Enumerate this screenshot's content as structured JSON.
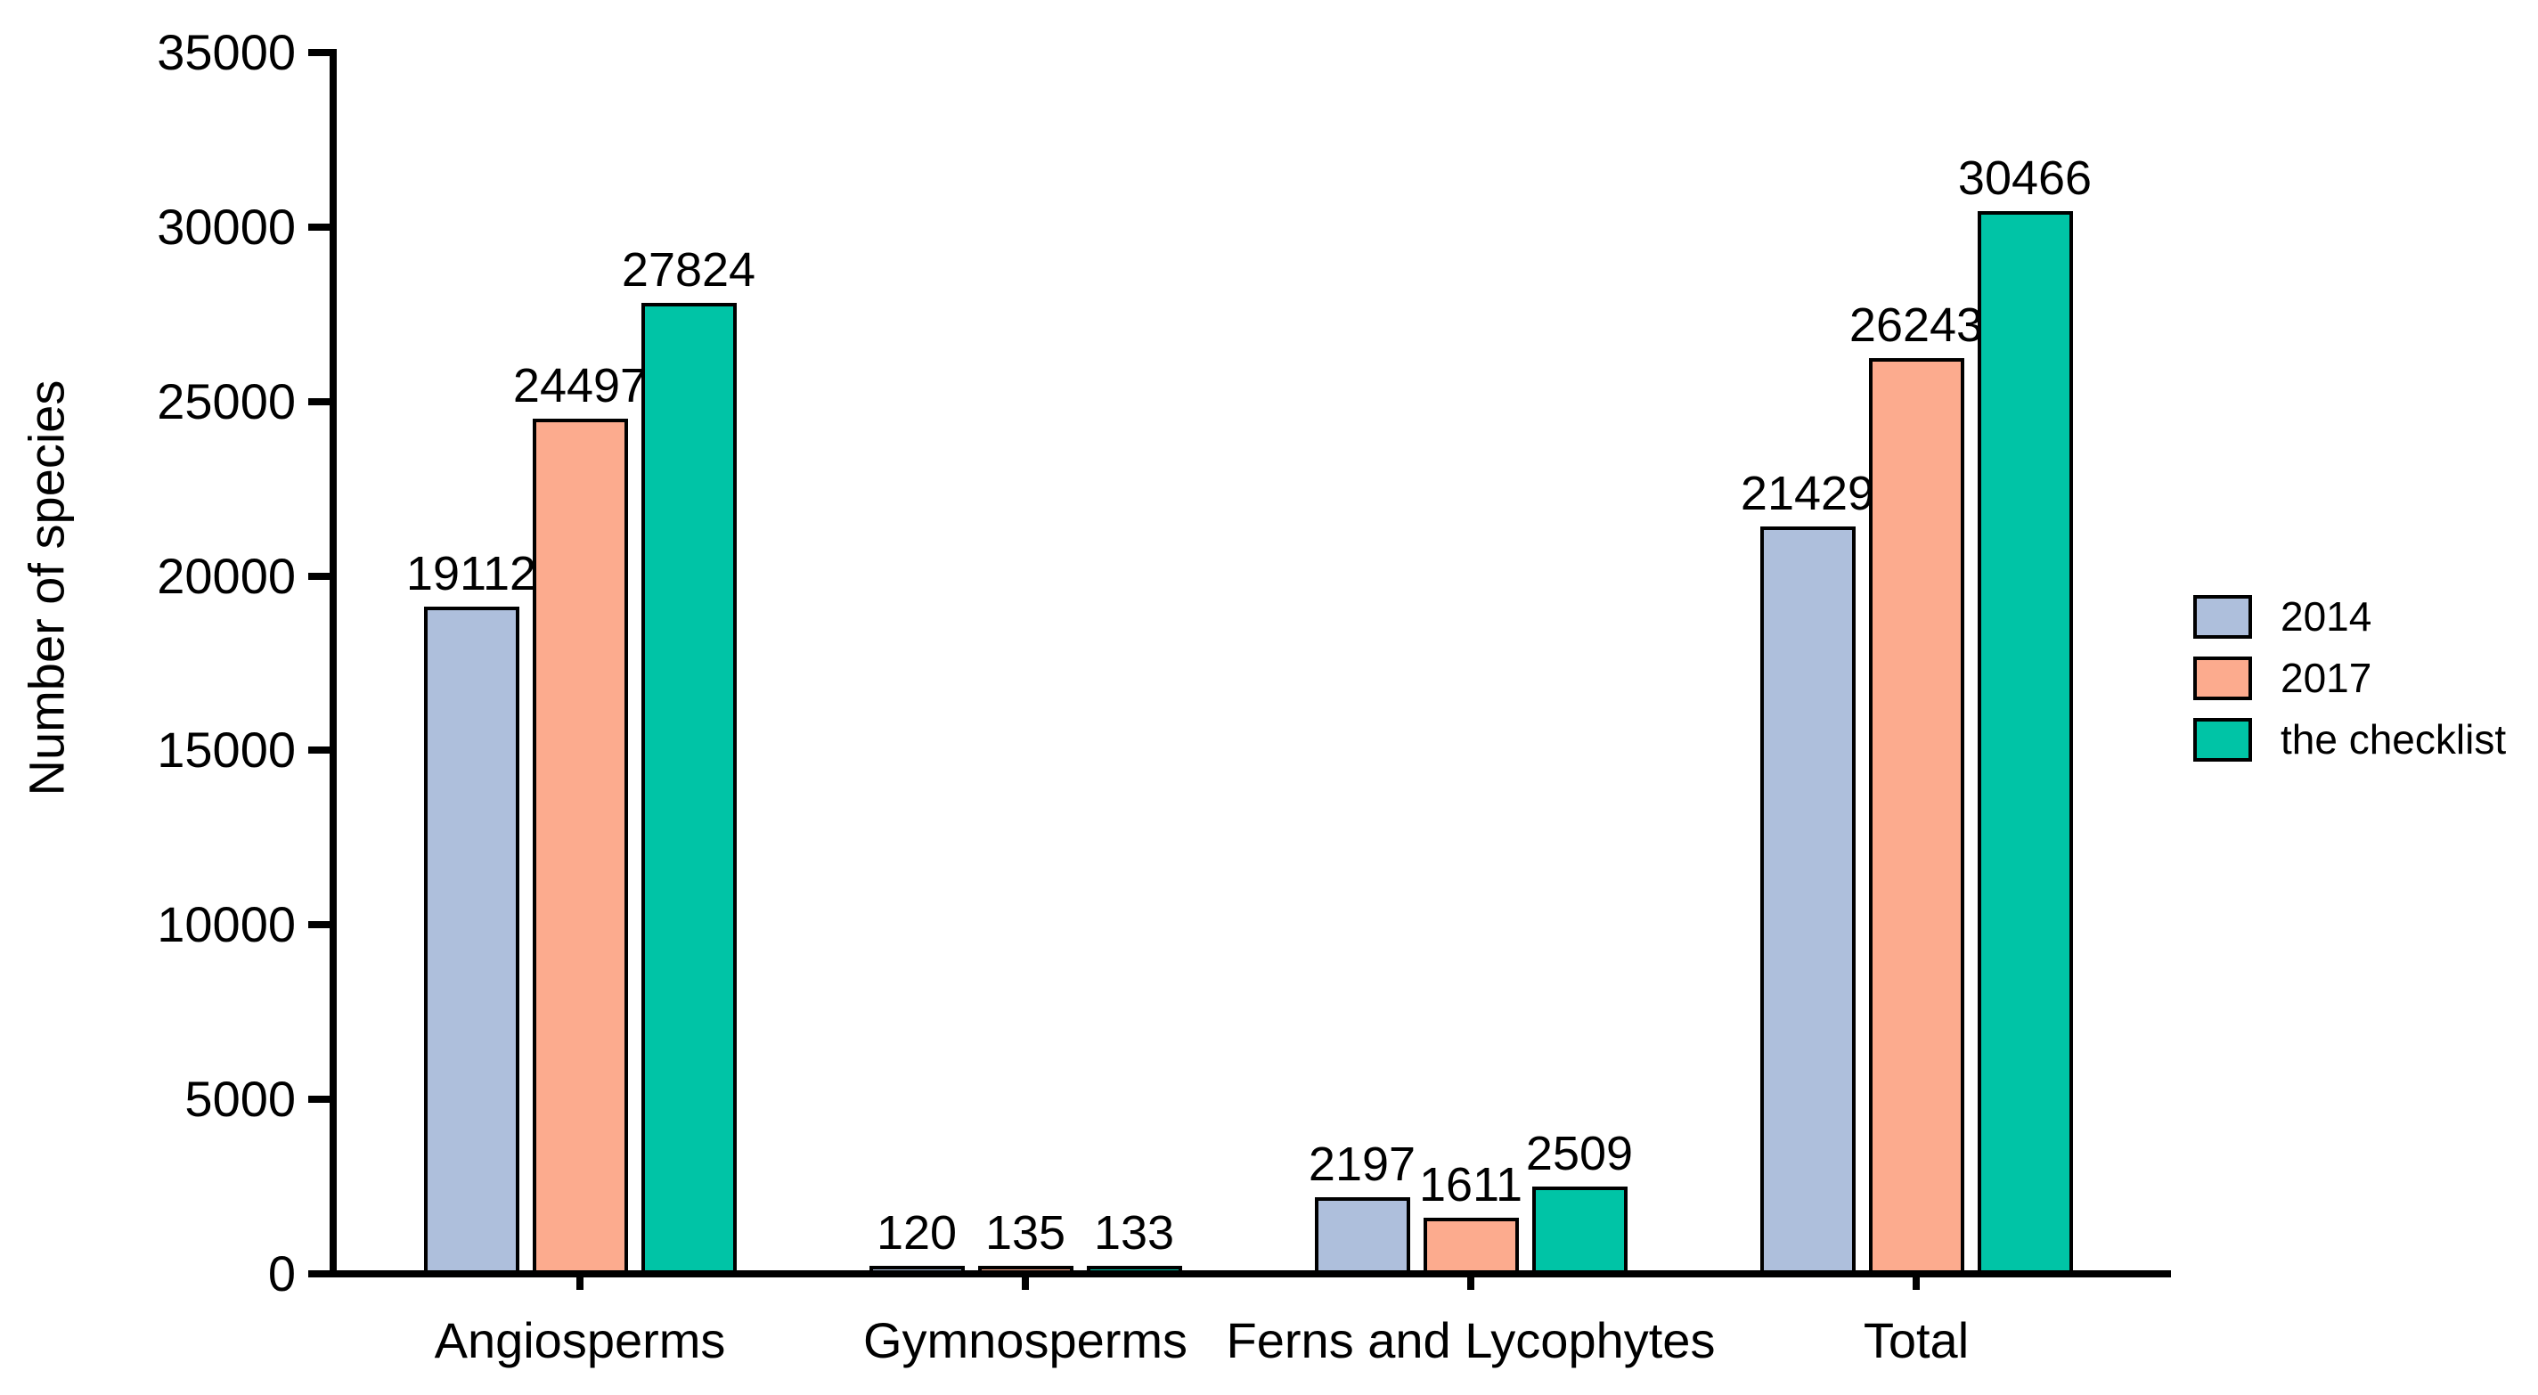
{
  "chart_data": {
    "type": "bar",
    "title": "",
    "categories": [
      "Angiosperms",
      "Gymnosperms",
      "Ferns and Lycophytes",
      "Total"
    ],
    "series": [
      {
        "name": "2014",
        "color": "#aebfdc",
        "values": [
          19112,
          120,
          2197,
          21429
        ]
      },
      {
        "name": "2017",
        "color": "#fcab8e",
        "values": [
          24497,
          135,
          1611,
          26243
        ]
      },
      {
        "name": "the checklist",
        "color": "#00c4a6",
        "values": [
          27824,
          133,
          2509,
          30466
        ]
      }
    ],
    "xlabel": "",
    "ylabel": "Number of species",
    "ylim": [
      0,
      35000
    ],
    "yticks": [
      0,
      5000,
      10000,
      15000,
      20000,
      25000,
      30000,
      35000
    ],
    "grid": false,
    "legend_position": "right",
    "bar_value_labels": true,
    "bar_border_color": "#000000",
    "axis_color": "#000000",
    "background_color": "#ffffff"
  }
}
